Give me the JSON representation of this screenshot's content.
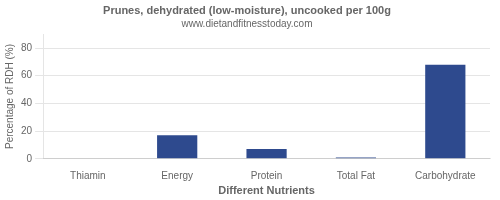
{
  "chart_data": {
    "type": "bar",
    "title": "Prunes, dehydrated (low-moisture), uncooked per 100g",
    "subtitle": "www.dietandfitnesstoday.com",
    "categories": [
      "Thiamin",
      "Energy",
      "Protein",
      "Total Fat",
      "Carbohydrate"
    ],
    "values": [
      0,
      17,
      7,
      1,
      68
    ],
    "color": "#2e4a8e",
    "xlabel": "Different Nutrients",
    "ylabel": "Percentage of RDH (%)",
    "ylim": [
      0,
      90
    ],
    "yticks": [
      0,
      20,
      40,
      60,
      80
    ],
    "grid": true
  }
}
